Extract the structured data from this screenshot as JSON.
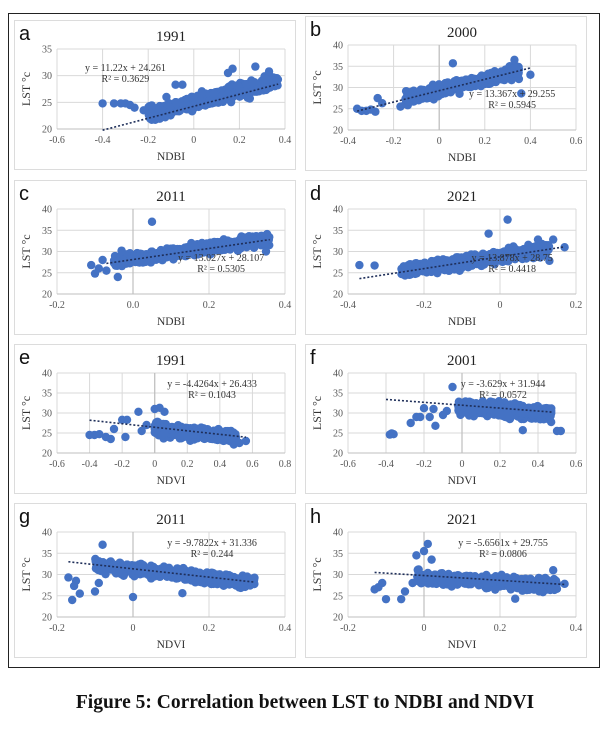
{
  "figure": {
    "caption": "Figure 5: Correlation between LST to NDBI and NDVI",
    "point_color": "#4472C4",
    "trend_color": "#1f2f5a"
  },
  "chart_data": [
    {
      "id": "a",
      "type": "scatter",
      "title": "1991",
      "xlabel": "NDBI",
      "ylabel": "LST °c",
      "xlim": [
        -0.6,
        0.4
      ],
      "xticks": [
        -0.6,
        -0.4,
        -0.2,
        0,
        0.2,
        0.4
      ],
      "xtick_labels": [
        "-0.6",
        "-0.4",
        "-0.2",
        "0",
        "0.2",
        "0.4"
      ],
      "ylim": [
        20,
        35
      ],
      "yticks": [
        20,
        25,
        30,
        35
      ],
      "ytick_labels": [
        "20",
        "25",
        "30",
        "35"
      ],
      "grid": true,
      "vline_x": null,
      "trendline": {
        "slope": 11.22,
        "intercept": 24.261,
        "x_range": [
          -0.4,
          0.37
        ]
      },
      "equation": "y = 11.22x + 24.261",
      "r2": "R² = 0.3629",
      "eq_position": "top-left",
      "cloud": {
        "x_range": [
          -0.2,
          0.37
        ],
        "y_center_at_x0": 24.9,
        "slope": 11.22,
        "spread": 2.2,
        "n": 520
      },
      "outliers": [
        [
          -0.4,
          24.8
        ],
        [
          -0.35,
          24.8
        ],
        [
          -0.32,
          24.8
        ],
        [
          -0.3,
          24.8
        ],
        [
          -0.28,
          24.5
        ],
        [
          -0.26,
          24
        ],
        [
          -0.22,
          23.5
        ],
        [
          -0.17,
          23
        ],
        [
          -0.12,
          26
        ],
        [
          -0.08,
          28.3
        ],
        [
          -0.05,
          28.3
        ],
        [
          0.15,
          30.5
        ],
        [
          0.17,
          31.3
        ],
        [
          0.27,
          31.7
        ],
        [
          0.33,
          30.8
        ],
        [
          0.36,
          28.8
        ]
      ]
    },
    {
      "id": "b",
      "type": "scatter",
      "title": "2000",
      "xlabel": "NDBI",
      "ylabel": "LST °c",
      "xlim": [
        -0.4,
        0.6
      ],
      "xticks": [
        -0.4,
        -0.2,
        0,
        0.2,
        0.4,
        0.6
      ],
      "xtick_labels": [
        "-0.4",
        "-0.2",
        "0",
        "0.2",
        "0.4",
        "0.6"
      ],
      "ylim": [
        20,
        40
      ],
      "yticks": [
        20,
        25,
        30,
        35,
        40
      ],
      "ytick_labels": [
        "20",
        "25",
        "30",
        "35",
        "40"
      ],
      "grid": true,
      "vline_x": 0,
      "trendline": {
        "slope": 13.367,
        "intercept": 29.255,
        "x_range": [
          -0.36,
          0.4
        ]
      },
      "equation": "y = 13.367x + 29.255",
      "r2": "R² = 0.5945",
      "eq_position": "bottom-right",
      "cloud": {
        "x_range": [
          -0.15,
          0.35
        ],
        "y_center_at_x0": 29.3,
        "slope": 13.367,
        "spread": 2.3,
        "n": 520
      },
      "outliers": [
        [
          -0.36,
          25
        ],
        [
          -0.34,
          24.5
        ],
        [
          -0.32,
          24.5
        ],
        [
          -0.3,
          24.8
        ],
        [
          -0.28,
          24.3
        ],
        [
          -0.27,
          27.5
        ],
        [
          -0.25,
          26.3
        ],
        [
          -0.17,
          25.5
        ],
        [
          0.06,
          35.7
        ],
        [
          0.33,
          36.5
        ],
        [
          0.36,
          28.6
        ],
        [
          0.4,
          33
        ]
      ]
    },
    {
      "id": "c",
      "type": "scatter",
      "title": "2011",
      "xlabel": "NDBI",
      "ylabel": "LST °c",
      "xlim": [
        -0.2,
        0.4
      ],
      "xticks": [
        -0.2,
        0.0,
        0.2,
        0.4
      ],
      "xtick_labels": [
        "-0.2",
        "0.0",
        "0.2",
        "0.4"
      ],
      "ylim": [
        20,
        40
      ],
      "yticks": [
        20,
        25,
        30,
        35,
        40
      ],
      "ytick_labels": [
        "20",
        "25",
        "30",
        "35",
        "40"
      ],
      "grid": true,
      "vline_x": 0,
      "trendline": {
        "slope": 13.027,
        "intercept": 28.107,
        "x_range": [
          -0.07,
          0.36
        ]
      },
      "equation": "y = 13.027x + 28.107",
      "r2": "R² = 0.5305",
      "eq_position": "bottom-right",
      "cloud": {
        "x_range": [
          -0.05,
          0.36
        ],
        "y_center_at_x0": 28.3,
        "slope": 13.0,
        "spread": 2.2,
        "n": 560
      },
      "outliers": [
        [
          -0.11,
          26.8
        ],
        [
          -0.1,
          24.8
        ],
        [
          -0.09,
          26
        ],
        [
          -0.08,
          28
        ],
        [
          -0.07,
          25.5
        ],
        [
          -0.04,
          24
        ],
        [
          -0.03,
          30.2
        ],
        [
          0.05,
          37
        ],
        [
          0.35,
          30
        ]
      ]
    },
    {
      "id": "d",
      "type": "scatter",
      "title": "2021",
      "xlabel": "NDBI",
      "ylabel": "LST °c",
      "xlim": [
        -0.4,
        0.2
      ],
      "xticks": [
        -0.4,
        -0.2,
        0,
        0.2
      ],
      "xtick_labels": [
        "-0.4",
        "-0.2",
        "0",
        "0.2"
      ],
      "ylim": [
        20,
        40
      ],
      "yticks": [
        20,
        25,
        30,
        35,
        40
      ],
      "ytick_labels": [
        "20",
        "25",
        "30",
        "35",
        "40"
      ],
      "grid": true,
      "vline_x": null,
      "trendline": {
        "slope": 13.878,
        "intercept": 28.75,
        "x_range": [
          -0.37,
          0.17
        ]
      },
      "equation": "y = 13.878x + 28.75",
      "r2": "R² = 0.4418",
      "eq_position": "bottom-right",
      "cloud": {
        "x_range": [
          -0.26,
          0.13
        ],
        "y_center_at_x0": 28.8,
        "slope": 13.9,
        "spread": 2.3,
        "n": 520
      },
      "outliers": [
        [
          -0.37,
          26.8
        ],
        [
          -0.33,
          26.7
        ],
        [
          0.02,
          37.5
        ],
        [
          -0.03,
          34.2
        ],
        [
          0.1,
          32.8
        ],
        [
          0.14,
          32.8
        ],
        [
          0.17,
          31
        ],
        [
          0.13,
          27.8
        ]
      ]
    },
    {
      "id": "e",
      "type": "scatter",
      "title": "1991",
      "xlabel": "NDVI",
      "ylabel": "LST °c",
      "xlim": [
        -0.6,
        0.8
      ],
      "xticks": [
        -0.6,
        -0.4,
        -0.2,
        0,
        0.2,
        0.4,
        0.6,
        0.8
      ],
      "xtick_labels": [
        "-0.6",
        "-0.4",
        "-0.2",
        "0",
        "0.2",
        "0.4",
        "0.6",
        "0.8"
      ],
      "ylim": [
        20,
        40
      ],
      "yticks": [
        20,
        25,
        30,
        35,
        40
      ],
      "ytick_labels": [
        "20",
        "25",
        "30",
        "35",
        "40"
      ],
      "grid": true,
      "vline_x": 0,
      "trendline": {
        "slope": -4.4264,
        "intercept": 26.433,
        "x_range": [
          -0.4,
          0.56
        ]
      },
      "equation": "y = -4.4264x + 26.433",
      "r2": "R² = 0.1043",
      "eq_position": "top-right",
      "cloud": {
        "x_range": [
          0.0,
          0.5
        ],
        "y_center_at_x0": 26.0,
        "slope": -4.4,
        "spread": 2.4,
        "n": 480
      },
      "outliers": [
        [
          -0.4,
          24.5
        ],
        [
          -0.37,
          24.5
        ],
        [
          -0.34,
          24.7
        ],
        [
          -0.3,
          24
        ],
        [
          -0.27,
          23.5
        ],
        [
          -0.25,
          26
        ],
        [
          -0.2,
          28.3
        ],
        [
          -0.18,
          24
        ],
        [
          -0.17,
          28.3
        ],
        [
          -0.1,
          30.3
        ],
        [
          -0.08,
          25.5
        ],
        [
          -0.05,
          27
        ],
        [
          0,
          31
        ],
        [
          0.03,
          31.3
        ],
        [
          0.06,
          30.3
        ],
        [
          0.52,
          22.5
        ],
        [
          0.56,
          23
        ]
      ]
    },
    {
      "id": "f",
      "type": "scatter",
      "title": "2001",
      "xlabel": "NDVI",
      "ylabel": "LST °c",
      "xlim": [
        -0.6,
        0.6
      ],
      "xticks": [
        -0.6,
        -0.4,
        -0.2,
        0,
        0.2,
        0.4,
        0.6
      ],
      "xtick_labels": [
        "-0.6",
        "-0.4",
        "-0.2",
        "0",
        "0.2",
        "0.4",
        "0.6"
      ],
      "ylim": [
        20,
        40
      ],
      "yticks": [
        20,
        25,
        30,
        35,
        40
      ],
      "ytick_labels": [
        "20",
        "25",
        "30",
        "35",
        "40"
      ],
      "grid": true,
      "vline_x": 0,
      "trendline": {
        "slope": -3.629,
        "intercept": 31.944,
        "x_range": [
          -0.4,
          0.48
        ]
      },
      "equation": "y = -3.629x + 31.944",
      "r2": "R² = 0.0572",
      "eq_position": "top-right",
      "cloud": {
        "x_range": [
          -0.02,
          0.47
        ],
        "y_center_at_x0": 31.5,
        "slope": -3.6,
        "spread": 2.6,
        "n": 500
      },
      "outliers": [
        [
          -0.38,
          24.6
        ],
        [
          -0.37,
          24.9
        ],
        [
          -0.36,
          24.7
        ],
        [
          -0.27,
          27.5
        ],
        [
          -0.24,
          29
        ],
        [
          -0.22,
          29
        ],
        [
          -0.2,
          31.2
        ],
        [
          -0.17,
          29
        ],
        [
          -0.15,
          31
        ],
        [
          -0.14,
          26.8
        ],
        [
          -0.1,
          29.5
        ],
        [
          -0.08,
          30.5
        ],
        [
          -0.05,
          36.5
        ],
        [
          0.5,
          25.5
        ],
        [
          0.52,
          25.5
        ],
        [
          0.32,
          25.7
        ]
      ]
    },
    {
      "id": "g",
      "type": "scatter",
      "title": "2011",
      "xlabel": "NDVI",
      "ylabel": "LST °c",
      "xlim": [
        -0.2,
        0.4
      ],
      "xticks": [
        -0.2,
        0,
        0.2,
        0.4
      ],
      "xtick_labels": [
        "-0.2",
        "0",
        "0.2",
        "0.4"
      ],
      "ylim": [
        20,
        40
      ],
      "yticks": [
        20,
        25,
        30,
        35,
        40
      ],
      "ytick_labels": [
        "20",
        "25",
        "30",
        "35",
        "40"
      ],
      "grid": true,
      "vline_x": 0,
      "trendline": {
        "slope": -9.7822,
        "intercept": 31.336,
        "x_range": [
          -0.17,
          0.32
        ]
      },
      "equation": "y = -9.7822x + 31.336",
      "r2": "R² = 0.244",
      "eq_position": "top-right",
      "cloud": {
        "x_range": [
          -0.1,
          0.32
        ],
        "y_center_at_x0": 31.2,
        "slope": -9.8,
        "spread": 2.3,
        "n": 540
      },
      "outliers": [
        [
          -0.17,
          29.3
        ],
        [
          -0.16,
          24
        ],
        [
          -0.155,
          27.3
        ],
        [
          -0.15,
          28.5
        ],
        [
          -0.14,
          25.5
        ],
        [
          -0.1,
          26
        ],
        [
          -0.09,
          28
        ],
        [
          -0.08,
          37
        ],
        [
          0,
          24.7
        ],
        [
          0.13,
          25.6
        ]
      ]
    },
    {
      "id": "h",
      "type": "scatter",
      "title": "2021",
      "xlabel": "NDVI",
      "ylabel": "LST °c",
      "xlim": [
        -0.2,
        0.4
      ],
      "xticks": [
        -0.2,
        0,
        0.2,
        0.4
      ],
      "xtick_labels": [
        "-0.2",
        "0",
        "0.2",
        "0.4"
      ],
      "ylim": [
        20,
        40
      ],
      "yticks": [
        20,
        25,
        30,
        35,
        40
      ],
      "ytick_labels": [
        "20",
        "25",
        "30",
        "35",
        "40"
      ],
      "grid": true,
      "vline_x": 0,
      "trendline": {
        "slope": -5.6561,
        "intercept": 29.755,
        "x_range": [
          -0.13,
          0.37
        ]
      },
      "equation": "y = -5.6561x + 29.755",
      "r2": "R² = 0.0806",
      "eq_position": "top-right",
      "cloud": {
        "x_range": [
          -0.02,
          0.35
        ],
        "y_center_at_x0": 29.3,
        "slope": -5.6,
        "spread": 2.4,
        "n": 520
      },
      "outliers": [
        [
          -0.13,
          26.5
        ],
        [
          -0.12,
          27
        ],
        [
          -0.11,
          28
        ],
        [
          -0.1,
          24.2
        ],
        [
          -0.06,
          24.2
        ],
        [
          -0.05,
          26
        ],
        [
          -0.03,
          28
        ],
        [
          -0.02,
          34.5
        ],
        [
          0.0,
          35.5
        ],
        [
          0.01,
          37.2
        ],
        [
          0.02,
          33.5
        ],
        [
          0.24,
          24.3
        ],
        [
          0.34,
          31
        ],
        [
          0.37,
          27.8
        ]
      ]
    }
  ]
}
